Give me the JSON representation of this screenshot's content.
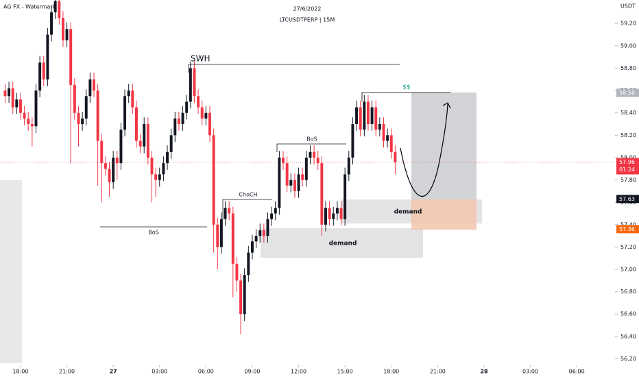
{
  "chart_data": {
    "type": "candlestick",
    "title": "27/6/2022",
    "subtitle": "LTCUSDTPERP | 15M",
    "watermark": "AG FX - Watermark",
    "y_axis_label": "USDT",
    "up_color": "#131722",
    "down_color": "#f23645",
    "xlim": [
      16.67,
      56.39
    ],
    "ylim": [
      56.16,
      59.41
    ],
    "xticks": [
      {
        "value": 18,
        "label": "18:00"
      },
      {
        "value": 21,
        "label": "21:00"
      },
      {
        "value": 24,
        "label": "27"
      },
      {
        "value": 27,
        "label": "03:00"
      },
      {
        "value": 30,
        "label": "06:00"
      },
      {
        "value": 33,
        "label": "09:00"
      },
      {
        "value": 36,
        "label": "12:00"
      },
      {
        "value": 39,
        "label": "15:00"
      },
      {
        "value": 42,
        "label": "18:00"
      },
      {
        "value": 45,
        "label": "21:00"
      },
      {
        "value": 48,
        "label": "28"
      },
      {
        "value": 51,
        "label": "03:00"
      },
      {
        "value": 54,
        "label": "06:00"
      }
    ],
    "yticks": [
      {
        "value": 56.2,
        "label": "56.20"
      },
      {
        "value": 56.4,
        "label": "56.40"
      },
      {
        "value": 56.6,
        "label": "56.60"
      },
      {
        "value": 56.8,
        "label": "56.80"
      },
      {
        "value": 57,
        "label": "57.00"
      },
      {
        "value": 57.2,
        "label": "57.20"
      },
      {
        "value": 57.4,
        "label": "57.40"
      },
      {
        "value": 57.6,
        "label": "57.60"
      },
      {
        "value": 57.8,
        "label": "57.80"
      },
      {
        "value": 58,
        "label": "58.00"
      },
      {
        "value": 58.2,
        "label": "58.20"
      },
      {
        "value": 58.4,
        "label": "58.40"
      },
      {
        "value": 58.6,
        "label": "58.60"
      },
      {
        "value": 58.8,
        "label": "58.80"
      },
      {
        "value": 59,
        "label": "59.00"
      },
      {
        "value": 59.2,
        "label": "59.20"
      }
    ],
    "price_tags": [
      {
        "value": 58.58,
        "color": "#b2b5be"
      },
      {
        "value": 57.96,
        "color": "#f23645",
        "timer": "01:24"
      },
      {
        "value": 57.63,
        "color": "#131722"
      },
      {
        "value": 57.36,
        "color": "#f7680f"
      }
    ],
    "annotations": [
      "SWH",
      "BoS",
      "ChoCH",
      "BoS",
      "demand",
      "demand",
      "$$"
    ],
    "x": [
      17,
      17.25,
      17.5,
      17.75,
      18,
      18.25,
      18.5,
      18.75,
      19,
      19.25,
      19.5,
      19.75,
      20,
      20.25,
      20.5,
      20.75,
      21,
      21.25,
      21.5,
      21.75,
      22,
      22.25,
      22.5,
      22.75,
      23,
      23.25,
      23.5,
      23.75,
      24,
      24.25,
      24.5,
      24.75,
      25,
      25.25,
      25.5,
      25.75,
      26,
      26.25,
      26.5,
      26.75,
      27,
      27.25,
      27.5,
      27.75,
      28,
      28.25,
      28.5,
      28.75,
      29,
      29.25,
      29.5,
      29.75,
      30,
      30.25,
      30.5,
      30.75,
      31,
      31.25,
      31.5,
      31.75,
      32,
      32.25,
      32.5,
      32.75,
      33,
      33.25,
      33.5,
      33.75,
      34,
      34.25,
      34.5,
      34.75,
      35,
      35.25,
      35.5,
      35.75,
      36,
      36.25,
      36.5,
      36.75,
      37,
      37.25,
      37.5,
      37.75,
      38,
      38.25,
      38.5,
      38.75,
      39,
      39.25,
      39.5,
      39.75,
      40,
      40.25,
      40.5,
      40.75,
      41,
      41.25,
      41.5,
      41.75,
      42,
      42.25
    ],
    "open": [
      58.6,
      58.55,
      58.62,
      58.45,
      58.52,
      58.4,
      58.35,
      58.3,
      58.28,
      58.6,
      58.85,
      58.7,
      59.1,
      59.3,
      59.4,
      59.25,
      59.05,
      59.15,
      58.65,
      58.4,
      58.3,
      58.35,
      58.55,
      58.7,
      58.6,
      58.15,
      57.95,
      57.9,
      57.78,
      58.0,
      57.95,
      58.25,
      58.55,
      58.6,
      58.45,
      58.15,
      58.1,
      58.3,
      58.0,
      57.85,
      57.8,
      57.85,
      57.95,
      58.05,
      58.2,
      58.35,
      58.3,
      58.4,
      58.5,
      58.8,
      58.55,
      58.45,
      58.35,
      58.4,
      58.2,
      57.4,
      57.2,
      57.45,
      57.55,
      57.5,
      57.05,
      56.9,
      56.6,
      56.95,
      57.15,
      57.25,
      57.3,
      57.35,
      57.3,
      57.45,
      57.5,
      57.55,
      58.0,
      57.95,
      57.75,
      57.8,
      57.7,
      57.85,
      57.8,
      58.0,
      58.05,
      58.0,
      57.95,
      57.4,
      57.55,
      57.45,
      57.5,
      57.55,
      57.45,
      57.85,
      58.0,
      58.3,
      58.45,
      58.25,
      58.5,
      58.3,
      58.45,
      58.25,
      58.3,
      58.15,
      58.2,
      58.05
    ],
    "high": [
      58.66,
      58.68,
      58.68,
      58.58,
      58.58,
      58.46,
      58.41,
      58.36,
      58.66,
      58.91,
      58.91,
      59.16,
      59.36,
      59.41,
      59.41,
      59.31,
      59.21,
      59.21,
      58.71,
      58.46,
      58.41,
      58.61,
      58.76,
      58.76,
      58.66,
      58.21,
      58.01,
      57.96,
      58.06,
      58.06,
      58.31,
      58.61,
      58.66,
      58.66,
      58.51,
      58.21,
      58.36,
      58.36,
      58.06,
      57.91,
      57.91,
      58.01,
      58.11,
      58.26,
      58.41,
      58.41,
      58.46,
      58.56,
      58.86,
      58.86,
      58.61,
      58.51,
      58.46,
      58.46,
      58.26,
      57.46,
      57.51,
      57.61,
      57.61,
      57.56,
      57.11,
      56.96,
      57.01,
      57.21,
      57.31,
      57.36,
      57.41,
      57.41,
      57.51,
      57.56,
      57.61,
      58.06,
      58.06,
      58.01,
      57.86,
      57.86,
      57.91,
      57.91,
      58.06,
      58.11,
      58.11,
      58.06,
      58.01,
      57.61,
      57.61,
      57.56,
      57.61,
      57.61,
      57.91,
      58.06,
      58.36,
      58.51,
      58.51,
      58.56,
      58.56,
      58.51,
      58.51,
      58.36,
      58.36,
      58.26,
      58.26,
      58.11
    ],
    "low": [
      58.49,
      58.49,
      58.39,
      58.39,
      58.34,
      58.29,
      58.24,
      58.1,
      58.22,
      58.54,
      58.64,
      58.64,
      59.04,
      59.24,
      59.19,
      58.99,
      58.99,
      57.95,
      58.34,
      58.1,
      58.24,
      58.29,
      58.49,
      58.54,
      57.75,
      57.6,
      57.84,
      57.65,
      57.72,
      57.8,
      57.89,
      58.19,
      58.49,
      58.39,
      58.09,
      58.04,
      58.04,
      57.94,
      57.6,
      57.65,
      57.74,
      57.79,
      57.89,
      57.99,
      58.14,
      58.24,
      58.24,
      58.34,
      58.44,
      58.49,
      58.39,
      58.29,
      58.29,
      58.14,
      57.15,
      57.0,
      57.14,
      57.39,
      57.44,
      56.75,
      56.8,
      56.42,
      56.54,
      56.89,
      57.09,
      57.19,
      57.24,
      57.24,
      57.24,
      57.39,
      57.44,
      57.49,
      57.89,
      57.69,
      57.69,
      57.64,
      57.64,
      57.74,
      57.74,
      57.94,
      57.94,
      57.89,
      57.3,
      57.34,
      57.39,
      57.39,
      57.44,
      57.39,
      57.39,
      57.79,
      57.94,
      58.24,
      58.19,
      58.19,
      58.24,
      58.24,
      58.19,
      58.19,
      58.09,
      58.09,
      57.99,
      57.85
    ],
    "close": [
      58.55,
      58.62,
      58.45,
      58.52,
      58.4,
      58.35,
      58.3,
      58.28,
      58.6,
      58.85,
      58.7,
      59.1,
      59.3,
      59.4,
      59.25,
      59.05,
      59.15,
      58.65,
      58.4,
      58.3,
      58.35,
      58.55,
      58.7,
      58.6,
      58.15,
      57.95,
      57.9,
      57.78,
      58.0,
      57.95,
      58.25,
      58.55,
      58.6,
      58.45,
      58.15,
      58.1,
      58.3,
      58.0,
      57.85,
      57.8,
      57.85,
      57.95,
      58.05,
      58.2,
      58.35,
      58.3,
      58.4,
      58.5,
      58.8,
      58.55,
      58.45,
      58.35,
      58.4,
      58.2,
      57.4,
      57.2,
      57.45,
      57.55,
      57.5,
      57.05,
      56.9,
      56.6,
      56.95,
      57.15,
      57.25,
      57.3,
      57.35,
      57.3,
      57.45,
      57.5,
      57.55,
      58.0,
      57.95,
      57.75,
      57.8,
      57.7,
      57.85,
      57.8,
      58.0,
      58.05,
      58.0,
      57.95,
      57.4,
      57.55,
      57.45,
      57.5,
      57.55,
      57.45,
      57.85,
      58.0,
      58.3,
      58.45,
      58.25,
      58.5,
      58.3,
      58.45,
      58.25,
      58.3,
      58.15,
      58.2,
      58.05,
      57.96
    ]
  }
}
